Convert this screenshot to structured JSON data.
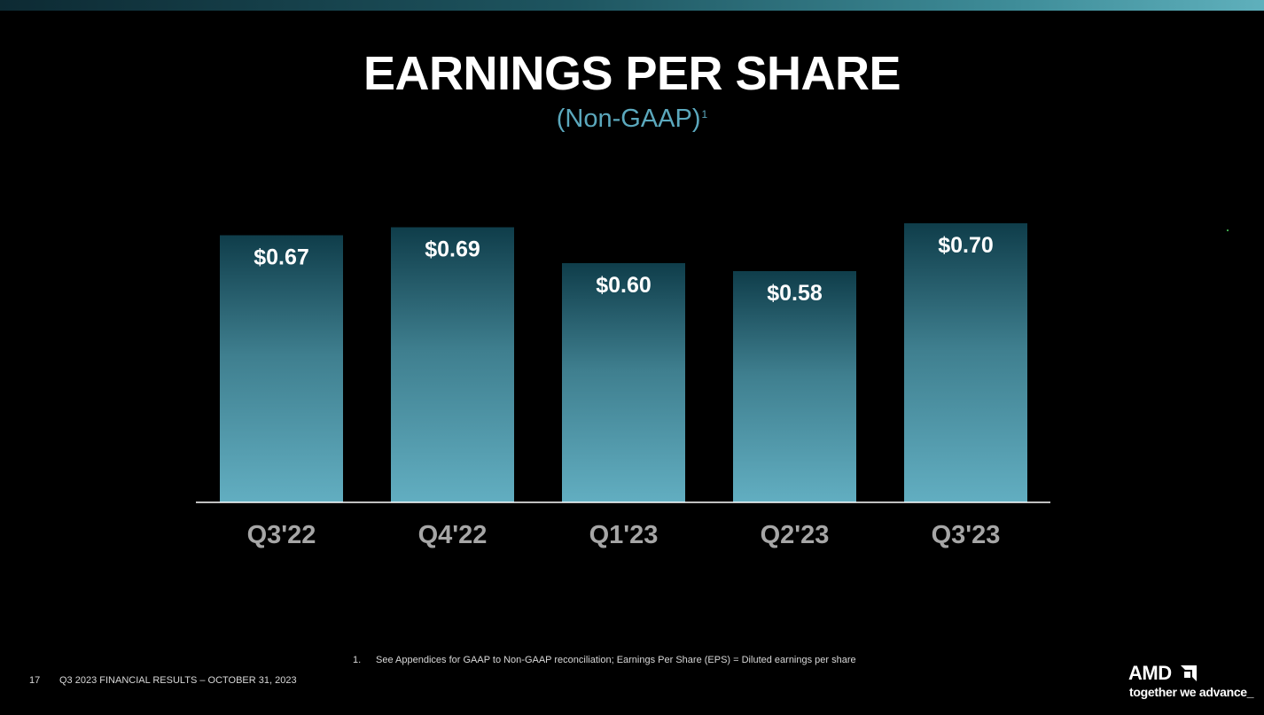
{
  "slide": {
    "title": "EARNINGS PER SHARE",
    "subtitle": "(Non-GAAP)",
    "subtitle_footnote_ref": "1",
    "page_number": "17",
    "footer_text": "Q3 2023 FINANCIAL RESULTS – OCTOBER 31, 2023",
    "footnote_number": "1.",
    "footnote_text": "See Appendices for GAAP to Non-GAAP reconciliation; Earnings Per Share (EPS) = Diluted earnings per share",
    "logo_text": "AMD",
    "tagline": "together we advance_"
  },
  "colors": {
    "background": "#000000",
    "bar_top": "#0f3d4a",
    "bar_bottom": "#62aec1",
    "subtitle": "#5ba8bd",
    "axis_label": "#a6a6a6",
    "baseline": "#ffffff"
  },
  "chart_data": {
    "type": "bar",
    "categories": [
      "Q3'22",
      "Q4'22",
      "Q1'23",
      "Q2'23",
      "Q3'23"
    ],
    "values": [
      0.67,
      0.69,
      0.6,
      0.58,
      0.7
    ],
    "value_labels": [
      "$0.67",
      "$0.69",
      "$0.60",
      "$0.58",
      "$0.70"
    ],
    "ylim": [
      0,
      0.7
    ],
    "grid": false,
    "legend": "none"
  }
}
